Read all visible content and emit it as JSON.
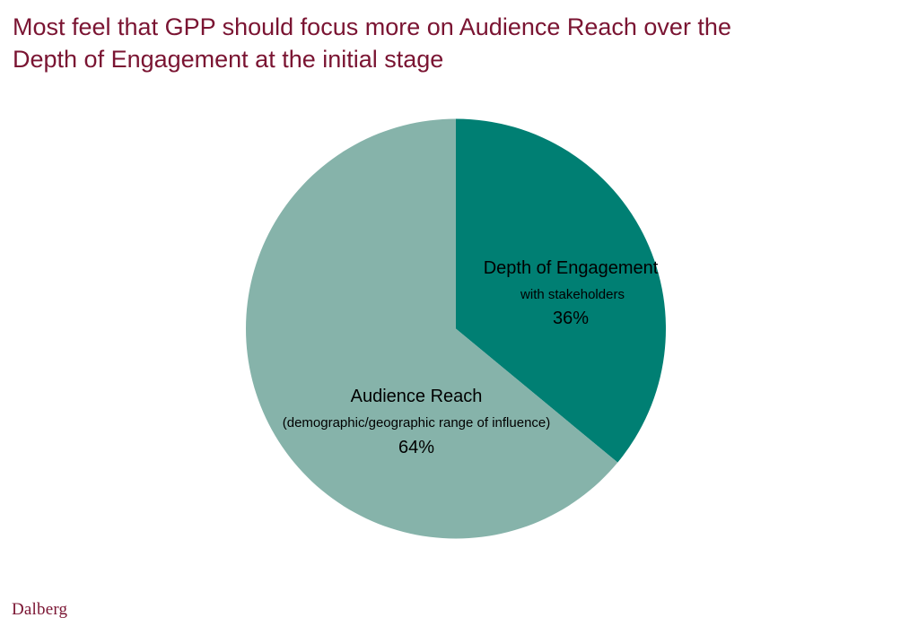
{
  "title_lines": [
    "Most feel that GPP should focus more on Audience Reach over the",
    "Depth of Engagement at the initial stage"
  ],
  "chart_data": {
    "type": "pie",
    "slices": [
      {
        "label": "Depth of Engagement",
        "sublabel": "with stakeholders",
        "value": 36,
        "value_label": "36%",
        "color": "#007f73"
      },
      {
        "label": "Audience Reach",
        "sublabel": "(demographic/geographic range of influence)",
        "value": 64,
        "value_label": "64%",
        "color": "#86b3aa"
      }
    ],
    "start_angle": "12 o'clock",
    "direction": "clockwise"
  },
  "logo": "Dalberg"
}
